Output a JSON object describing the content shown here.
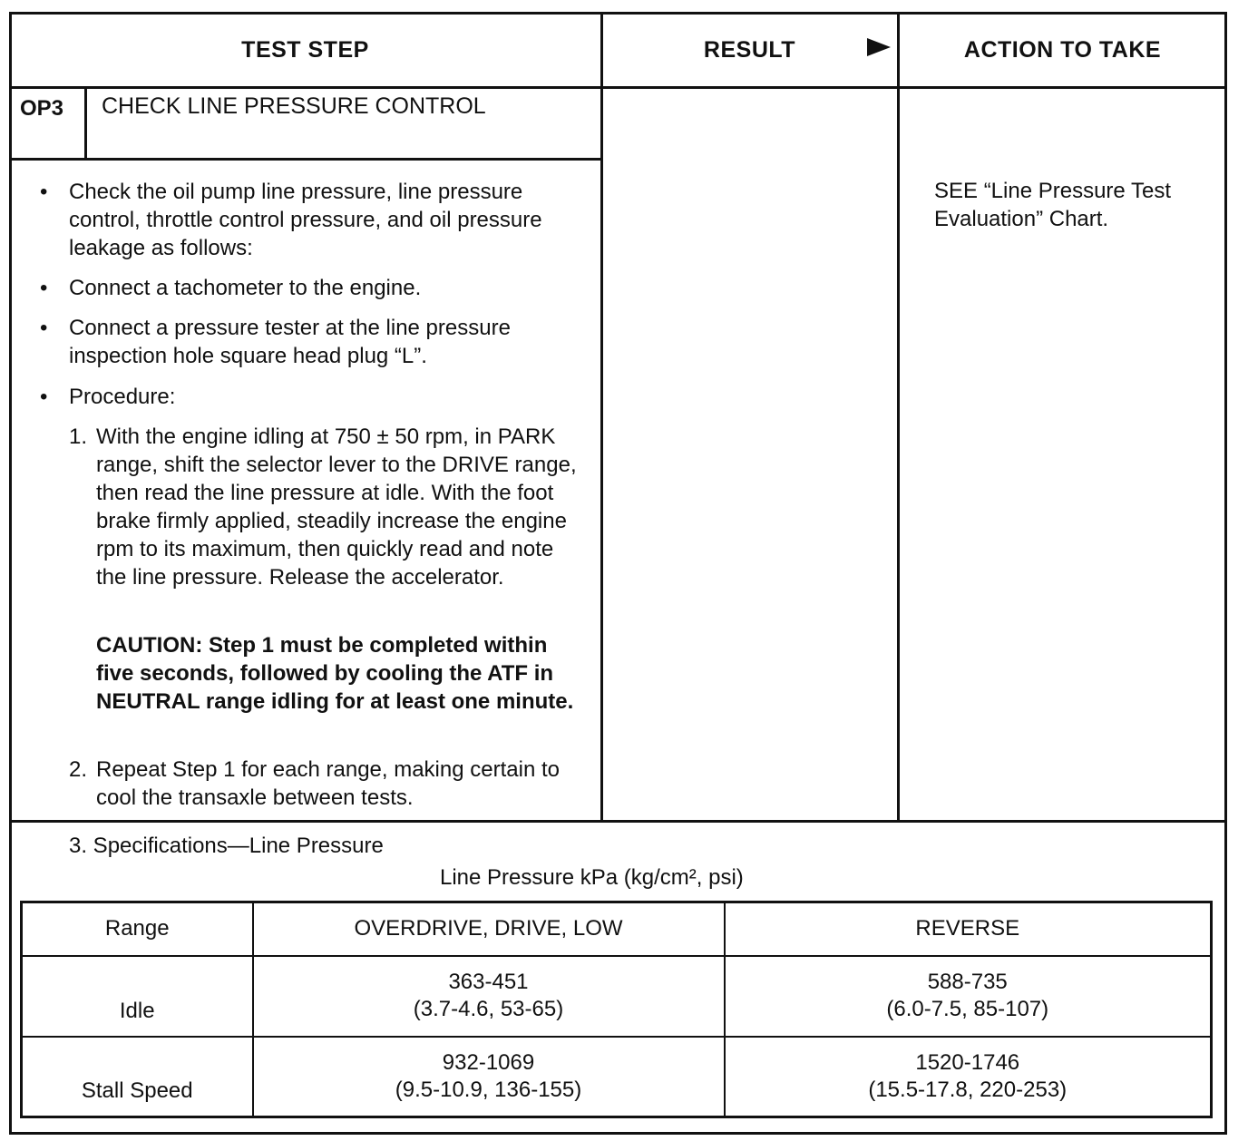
{
  "header": {
    "test_step": "TEST STEP",
    "result": "RESULT",
    "result_arrow_icon": "triangle-right-icon",
    "action": "ACTION TO TAKE"
  },
  "step": {
    "id": "OP3",
    "title": "CHECK LINE PRESSURE CONTROL"
  },
  "bullets": [
    "Check the oil pump line pressure, line pressure control, throttle control pressure, and oil pressure leakage as follows:",
    "Connect a tachometer to the engine.",
    "Connect a pressure tester at the line pressure inspection hole square head plug “L”.",
    "Procedure:"
  ],
  "procedure": [
    {
      "num": "1.",
      "text": "With the engine idling at 750 ± 50 rpm, in PARK range, shift the selector lever to the DRIVE range, then read the line pressure at idle. With the foot brake firmly applied, steadily increase the engine rpm to its maximum, then quickly read and note the line pressure. Release the accelerator."
    },
    {
      "num": "2.",
      "text": "Repeat Step 1 for each range, making certain to cool the transaxle between tests."
    }
  ],
  "caution": "CAUTION: Step 1 must be completed within five seconds, followed by cooling the ATF in NEUTRAL range idling for at least one minute.",
  "action_text": "SEE “Line Pressure Test Evaluation” Chart.",
  "specs": {
    "heading": "3. Specifications—Line Pressure",
    "subheading": "Line Pressure kPa (kg/cm², psi)",
    "columns": [
      "Range",
      "OVERDRIVE, DRIVE, LOW",
      "REVERSE"
    ],
    "rows": [
      {
        "range": "Idle",
        "drive": [
          "363-451",
          "(3.7-4.6, 53-65)"
        ],
        "reverse": [
          "588-735",
          "(6.0-7.5, 85-107)"
        ]
      },
      {
        "range": "Stall Speed",
        "drive": [
          "932-1069",
          "(9.5-10.9, 136-155)"
        ],
        "reverse": [
          "1520-1746",
          "(15.5-17.8, 220-253)"
        ]
      }
    ]
  }
}
